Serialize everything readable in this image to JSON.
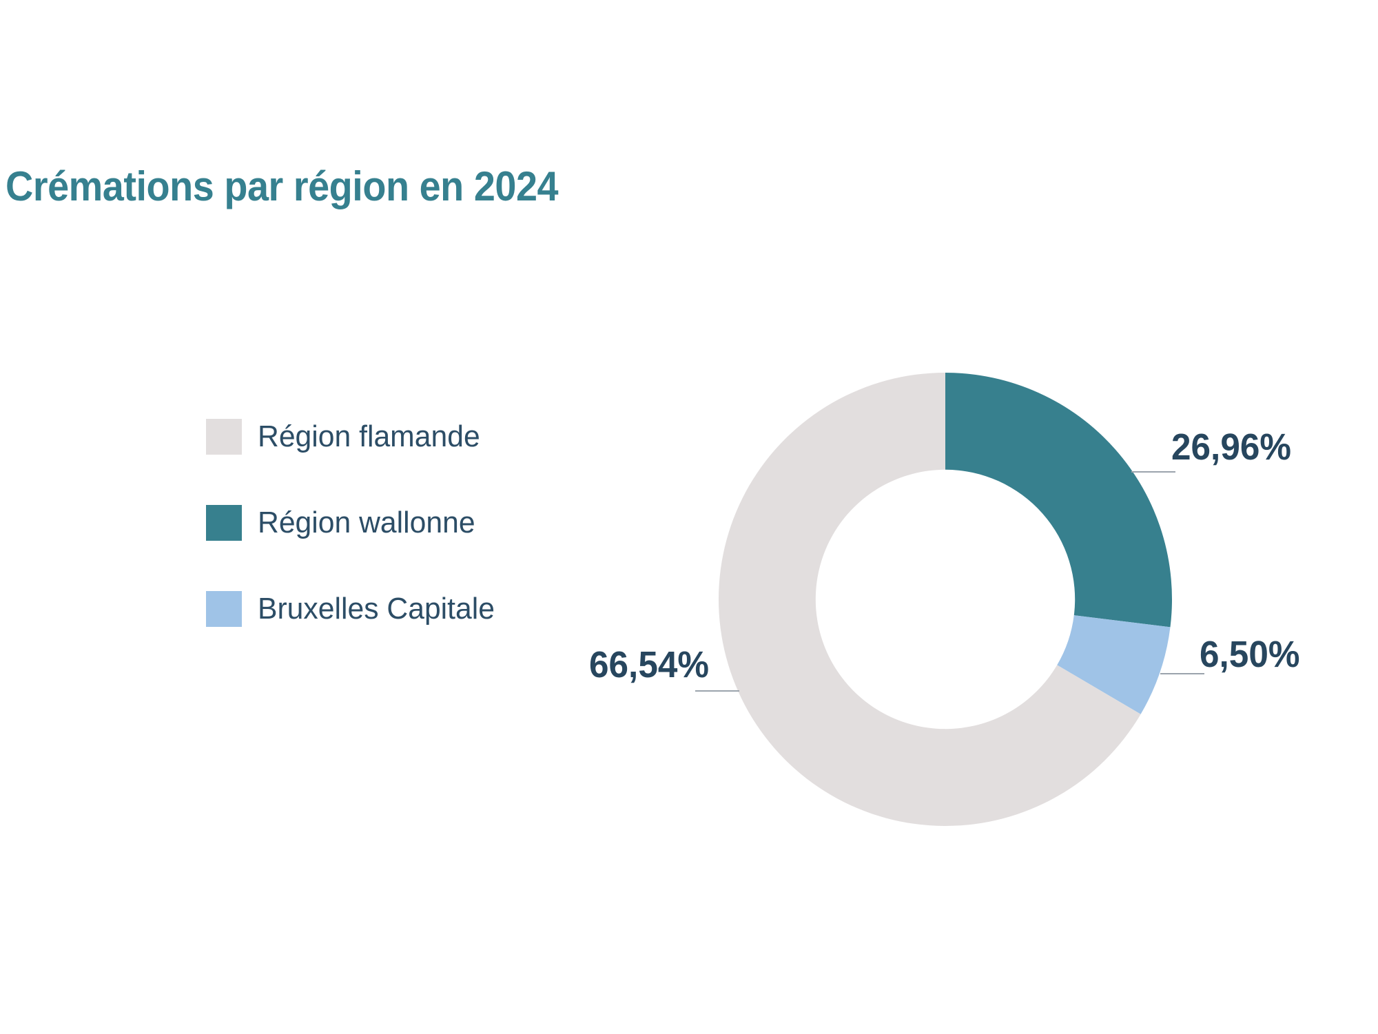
{
  "title": {
    "text": "Crémations par région en 2024",
    "color": "#36808F"
  },
  "legend": {
    "position": "left",
    "items": [
      {
        "id": "region-flamande",
        "label": "Région flamande",
        "color": "#E2DEDE"
      },
      {
        "id": "region-wallonne",
        "label": "Région wallonne",
        "color": "#37808E"
      },
      {
        "id": "bruxelles-capitale",
        "label": "Bruxelles Capitale",
        "color": "#9FC3E7"
      }
    ]
  },
  "chart_data": {
    "type": "pie",
    "subtype": "donut",
    "title": "Crémations par région en 2024",
    "start_angle": "top",
    "direction": "clockwise",
    "inner_radius_ratio": 0.572,
    "legend_position": "left",
    "value_unit": "%",
    "value_format": "comma-decimal",
    "slices": [
      {
        "id": "region-wallonne",
        "label": "Région wallonne",
        "value": 26.96,
        "display": "26,96%",
        "color": "#37808E"
      },
      {
        "id": "bruxelles-capitale",
        "label": "Bruxelles Capitale",
        "value": 6.5,
        "display": "6,50%",
        "color": "#9FC3E7"
      },
      {
        "id": "region-flamande",
        "label": "Région flamande",
        "value": 66.54,
        "display": "66,54%",
        "color": "#E2DEDE"
      }
    ],
    "callout_text_color": "#27465E",
    "leader_line_color": "#9BA3AC"
  }
}
